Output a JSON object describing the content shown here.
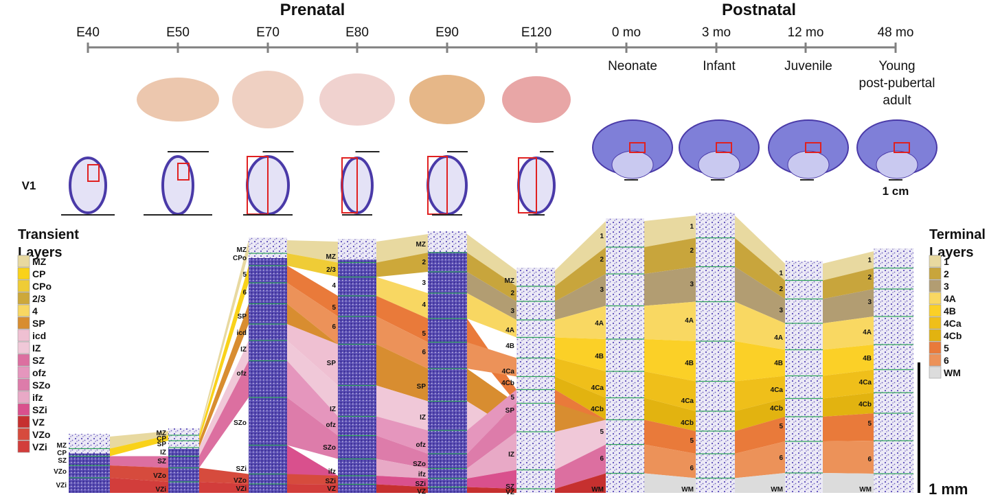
{
  "periods": {
    "prenatal": "Prenatal",
    "postnatal": "Postnatal"
  },
  "timeline": [
    "E40",
    "E50",
    "E70",
    "E80",
    "E90",
    "E120",
    "0 mo",
    "3 mo",
    "12 mo",
    "48 mo"
  ],
  "stages": {
    "neonate": "Neonate",
    "infant": "Infant",
    "juvenile": "Juvenile",
    "adult": [
      "Young",
      "post-pubertal",
      "adult"
    ]
  },
  "region_label": "V1",
  "scale_cm": "1 cm",
  "scale_mm": "1 mm",
  "transient_legend": {
    "title": [
      "Transient",
      "Layers"
    ],
    "items": [
      {
        "label": "MZ",
        "color": "#e8d9a0"
      },
      {
        "label": "CP",
        "color": "#f9d21a"
      },
      {
        "label": "CPo",
        "color": "#efcc36"
      },
      {
        "label": "2/3",
        "color": "#cda83a"
      },
      {
        "label": "4",
        "color": "#f8d762"
      },
      {
        "label": "SP",
        "color": "#d88d30"
      },
      {
        "label": "icd",
        "color": "#efc0d2"
      },
      {
        "label": "IZ",
        "color": "#f0c8d8"
      },
      {
        "label": "SZ",
        "color": "#dc6fa0"
      },
      {
        "label": "ofz",
        "color": "#e596bd"
      },
      {
        "label": "SZo",
        "color": "#dd7caa"
      },
      {
        "label": "ifz",
        "color": "#e8a9c6"
      },
      {
        "label": "SZi",
        "color": "#d9508d"
      },
      {
        "label": "VZ",
        "color": "#c6302f"
      },
      {
        "label": "VZo",
        "color": "#d64b3d"
      },
      {
        "label": "VZi",
        "color": "#d23d3b"
      }
    ]
  },
  "terminal_legend": {
    "title": [
      "Terminal",
      "Layers"
    ],
    "items": [
      {
        "label": "1",
        "color": "#e8d9a0"
      },
      {
        "label": "2",
        "color": "#c8a53c"
      },
      {
        "label": "3",
        "color": "#b29d72"
      },
      {
        "label": "4A",
        "color": "#f9d862"
      },
      {
        "label": "4B",
        "color": "#fbd027"
      },
      {
        "label": "4Ca",
        "color": "#efbf1a"
      },
      {
        "label": "4Cb",
        "color": "#e2b310"
      },
      {
        "label": "5",
        "color": "#e97a3a"
      },
      {
        "label": "6",
        "color": "#ec9259"
      },
      {
        "label": "WM",
        "color": "#dcdcdc"
      }
    ]
  },
  "columns": [
    {
      "age": "E40",
      "layers": [
        "MZ",
        "CP",
        "SZ",
        "VZo",
        "VZi"
      ]
    },
    {
      "age": "E50",
      "layers": [
        "MZ",
        "CP",
        "SP",
        "IZ",
        "SZ",
        "VZo",
        "VZi"
      ]
    },
    {
      "age": "E70",
      "layers": [
        "MZ",
        "CPo",
        "5",
        "6",
        "SP",
        "icd",
        "IZ",
        "ofz",
        "SZo",
        "SZi",
        "VZo",
        "VZi"
      ]
    },
    {
      "age": "E80",
      "layers": [
        "MZ",
        "2/3",
        "4",
        "5",
        "6",
        "SP",
        "IZ",
        "ofz",
        "SZo",
        "ifz",
        "SZi",
        "VZ"
      ]
    },
    {
      "age": "E90",
      "layers": [
        "MZ",
        "2",
        "3",
        "4",
        "5",
        "6",
        "SP",
        "IZ",
        "ofz",
        "SZo",
        "ifz",
        "SZi",
        "VZ"
      ]
    },
    {
      "age": "E120",
      "layers": [
        "MZ",
        "2",
        "3",
        "4A",
        "4B",
        "4Ca",
        "4Cb",
        "5",
        "SP",
        "IZ",
        "SZ",
        "VZ"
      ]
    },
    {
      "age": "0 mo",
      "layers": [
        "1",
        "2",
        "3",
        "4A",
        "4B",
        "4Ca",
        "4Cb",
        "5",
        "6",
        "WM"
      ]
    },
    {
      "age": "3 mo",
      "layers": [
        "1",
        "2",
        "3",
        "4A",
        "4B",
        "4Ca",
        "4Cb",
        "5",
        "6",
        "WM"
      ]
    },
    {
      "age": "12 mo",
      "layers": [
        "1",
        "2",
        "3",
        "4A",
        "4B",
        "4Ca",
        "4Cb",
        "5",
        "6",
        "WM"
      ]
    },
    {
      "age": "48 mo",
      "layers": [
        "1",
        "2",
        "3",
        "4A",
        "4B",
        "4Ca",
        "4Cb",
        "5",
        "6",
        "WM"
      ]
    }
  ],
  "colors": {
    "timeline": "#808080",
    "section_box": "#e02020",
    "nissl": "#4a3aa8",
    "boundary": "#2fa35a"
  }
}
